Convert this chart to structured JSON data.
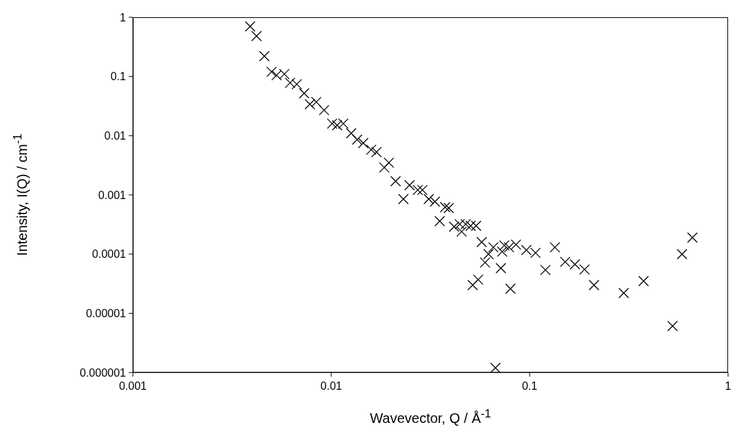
{
  "chart_data": {
    "type": "scatter",
    "xlabel": "Wavevector, Q / Å$^{-1}$",
    "ylabel": "Intensity, I(Q) / cm$^{-1}$",
    "log": "xy",
    "grid": false,
    "marker": "cross",
    "xlim": [
      0.001,
      1
    ],
    "xticks": [
      0.001,
      0.01,
      0.1,
      1
    ],
    "ylim": [
      1e-06,
      1
    ],
    "yticks": [
      {
        "value": 1e-06,
        "label": "0.000001"
      },
      {
        "value": 1e-05,
        "label": "0.00001"
      },
      0.0001,
      0.001,
      0.01,
      0.1,
      1
    ],
    "series": [
      {
        "color": "#000000",
        "x": [
          0.0039,
          0.0042,
          0.0046,
          0.005,
          0.0053,
          0.0058,
          0.0062,
          0.0067,
          0.0073,
          0.0078,
          0.0084,
          0.0092,
          0.0101,
          0.0107,
          0.0115,
          0.0126,
          0.0135,
          0.0145,
          0.0159,
          0.0169,
          0.0185,
          0.0195,
          0.0211,
          0.0231,
          0.0248,
          0.0273,
          0.0288,
          0.031,
          0.0333,
          0.0352,
          0.0375,
          0.0391,
          0.0416,
          0.0444,
          0.0454,
          0.0476,
          0.0504,
          0.0537,
          0.0573,
          0.0596,
          0.062,
          0.0656,
          0.0716,
          0.0727,
          0.0745,
          0.0787,
          0.08,
          0.0853,
          0.0962,
          0.107,
          0.134,
          0.12,
          0.151,
          0.169,
          0.189,
          0.211,
          0.0516,
          0.055,
          0.0672,
          0.298,
          0.375,
          0.525,
          0.586,
          0.661
        ],
        "values": [
          0.7,
          0.48,
          0.22,
          0.12,
          0.105,
          0.11,
          0.078,
          0.074,
          0.052,
          0.034,
          0.037,
          0.027,
          0.016,
          0.015,
          0.016,
          0.011,
          0.0086,
          0.0075,
          0.0058,
          0.0053,
          0.0029,
          0.0035,
          0.0017,
          0.00085,
          0.00146,
          0.00121,
          0.00121,
          0.00085,
          0.00077,
          0.00036,
          0.00062,
          0.0006,
          0.00029,
          0.00032,
          0.00024,
          0.00032,
          0.0003,
          0.0003,
          0.00016,
          7.2e-05,
          0.0001,
          0.00013,
          5.8e-05,
          0.00011,
          0.00014,
          0.00013,
          2.6e-05,
          0.000145,
          0.000117,
          0.000105,
          0.00013,
          5.4e-05,
          7.4e-05,
          6.7e-05,
          5.5e-05,
          3e-05,
          3e-05,
          3.7e-05,
          1.2e-06,
          2.2e-05,
          3.5e-05,
          6.1e-06,
          0.0001,
          0.00019
        ]
      }
    ]
  }
}
